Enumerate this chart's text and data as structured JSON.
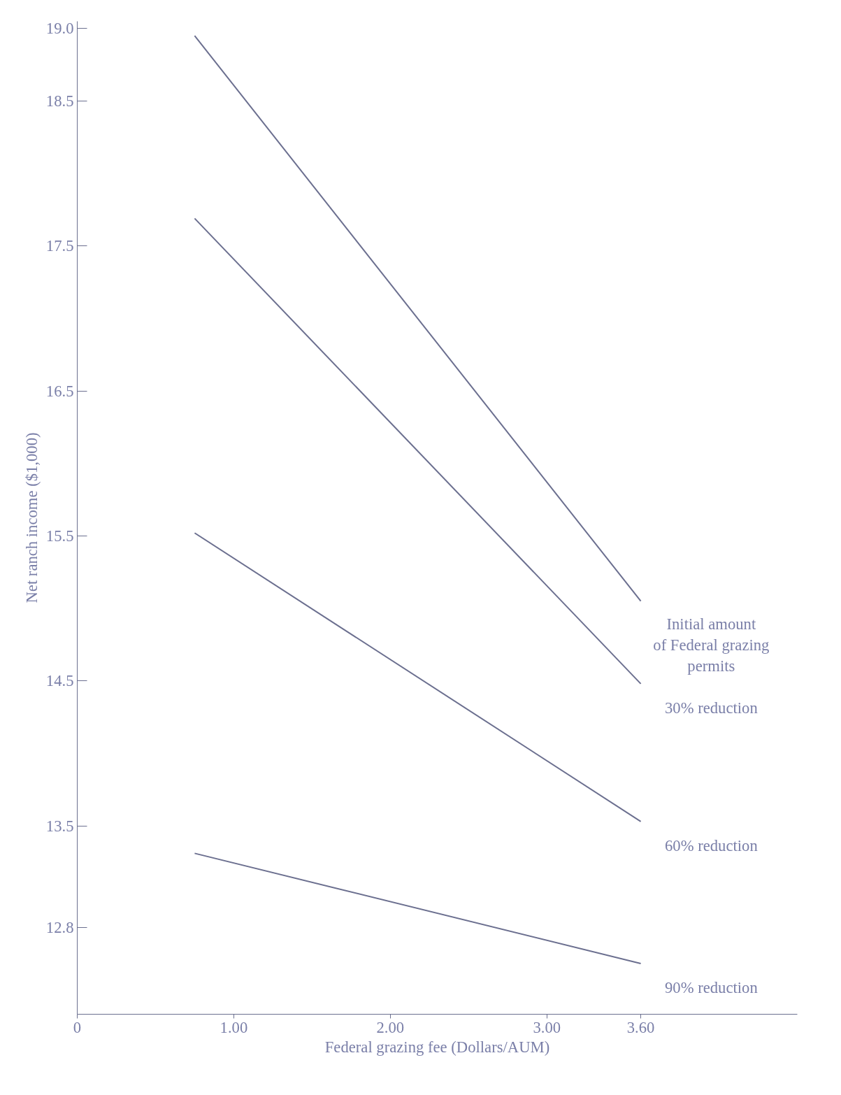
{
  "chart_data": {
    "type": "line",
    "xlabel": "Federal grazing fee (Dollars/AUM)",
    "ylabel": "Net ranch income ($1,000)",
    "xlim": [
      0,
      4.6
    ],
    "ylim": [
      12.2,
      19.05
    ],
    "xticks": [
      0,
      {
        "value": 1,
        "label": "1.00"
      },
      {
        "value": 2,
        "label": "2.00"
      },
      {
        "value": 3,
        "label": "3.00"
      },
      {
        "value": 3.6,
        "label": "3.60"
      }
    ],
    "yticks": [
      {
        "value": 19,
        "label": "19.0"
      },
      18.5,
      17.5,
      16.5,
      15.5,
      14.5,
      13.5,
      12.8
    ],
    "x": [
      0.75,
      3.6
    ],
    "series": [
      {
        "name": "Initial amount\nof Federal grazing\npermits",
        "color": "#6b6f8f",
        "values": [
          18.95,
          15.05
        ]
      },
      {
        "name": "30% reduction",
        "color": "#6b6f8f",
        "values": [
          17.69,
          14.48
        ]
      },
      {
        "name": "60% reduction",
        "color": "#6b6f8f",
        "values": [
          15.52,
          13.53
        ]
      },
      {
        "name": "90% reduction",
        "color": "#6b6f8f",
        "values": [
          13.31,
          12.55
        ]
      }
    ],
    "grid": false,
    "marker": "none",
    "line_style": "solid"
  }
}
